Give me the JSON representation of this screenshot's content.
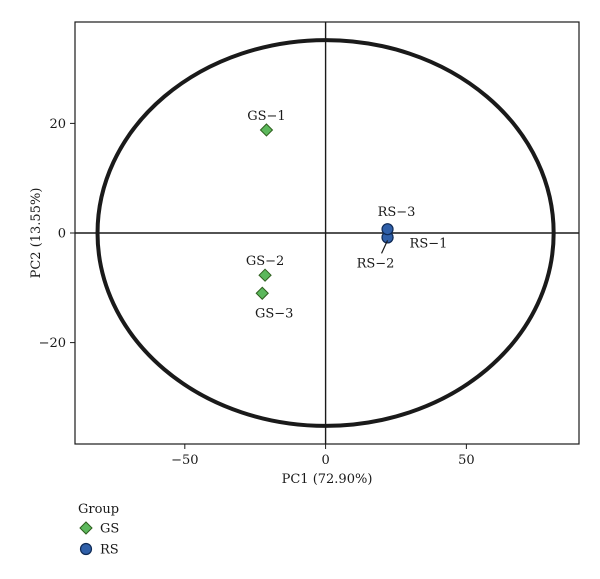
{
  "chart_data": {
    "type": "scatter",
    "xlabel": "PC1 (72.90%)",
    "ylabel": "PC2 (13.55%)",
    "xlim": [
      -89,
      90
    ],
    "ylim": [
      -38.5,
      38.5
    ],
    "xticks": [
      -50,
      0,
      50
    ],
    "yticks": [
      -20,
      0,
      20
    ],
    "grid": false,
    "reference_lines": {
      "x": 0,
      "y": 0
    },
    "confidence_ellipse": {
      "center": [
        0,
        0
      ],
      "semi_axis_x": 81,
      "semi_axis_y": 35.2
    },
    "legend": {
      "title": "Group",
      "placement": "bottom-left",
      "entries": [
        {
          "name": "GS",
          "marker": "diamond",
          "color": "#5cb85c"
        },
        {
          "name": "RS",
          "marker": "circle",
          "color": "#2f5fa8"
        }
      ]
    },
    "series": [
      {
        "name": "GS",
        "marker": "diamond",
        "color": "#5cb85c",
        "points": [
          {
            "label": "GS−1",
            "x": -21,
            "y": 18.8
          },
          {
            "label": "GS−2",
            "x": -21.5,
            "y": -7.7
          },
          {
            "label": "GS−3",
            "x": -22.5,
            "y": -11
          }
        ]
      },
      {
        "name": "RS",
        "marker": "circle",
        "color": "#2f5fa8",
        "points": [
          {
            "label": "RS−1",
            "x": 22,
            "y": -0.8
          },
          {
            "label": "RS−2",
            "x": 22,
            "y": -0.8
          },
          {
            "label": "RS−3",
            "x": 22,
            "y": 0.7
          }
        ]
      }
    ]
  }
}
